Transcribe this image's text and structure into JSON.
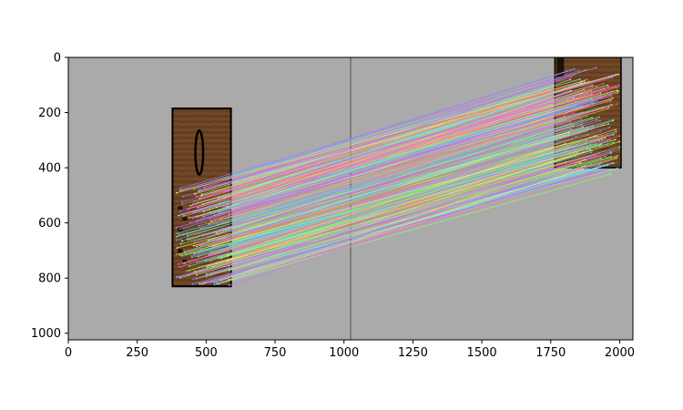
{
  "chart_data": {
    "type": "image",
    "title": "",
    "xlabel": "",
    "ylabel": "",
    "xlim": [
      0,
      2048
    ],
    "ylim": [
      1024,
      0
    ],
    "y_axis_inverted": true,
    "grid": false,
    "legend": "none",
    "x_ticks": [
      0,
      250,
      500,
      750,
      1000,
      1250,
      1500,
      1750,
      2000
    ],
    "y_ticks": [
      0,
      200,
      400,
      600,
      800,
      1000
    ],
    "x_tick_labels": [
      "0",
      "250",
      "500",
      "750",
      "1000",
      "1250",
      "1500",
      "1750",
      "2000"
    ],
    "y_tick_labels": [
      "0",
      "200",
      "400",
      "600",
      "800",
      "1000"
    ],
    "background_color": "#aaaaaa",
    "divider_x": 1024,
    "divider_color": "#6e6e6e",
    "left_object": {
      "x_range": [
        378,
        590
      ],
      "y_range": [
        185,
        830
      ],
      "color": "#6b4423",
      "glyph_ellipse": {
        "cx": 475,
        "cy": 345,
        "rx": 14,
        "ry": 80
      }
    },
    "right_object": {
      "x_range": [
        1765,
        2005
      ],
      "y_range": [
        0,
        400
      ],
      "color": "#6b4423"
    },
    "match_lines": {
      "count": 220,
      "source_region": {
        "x_range": [
          390,
          600
        ],
        "y_range": [
          470,
          830
        ]
      },
      "target_region": {
        "x_range": [
          1760,
          2000
        ],
        "y_range": [
          50,
          420
        ]
      },
      "colors": [
        "#ff6b6b",
        "#6bff6b",
        "#6b9bff",
        "#ffb36b",
        "#d96bff",
        "#6bffe6",
        "#ffee6b",
        "#ff6bc1",
        "#9bff6b",
        "#6bc1ff",
        "#c19b6b",
        "#b36bff"
      ]
    }
  }
}
